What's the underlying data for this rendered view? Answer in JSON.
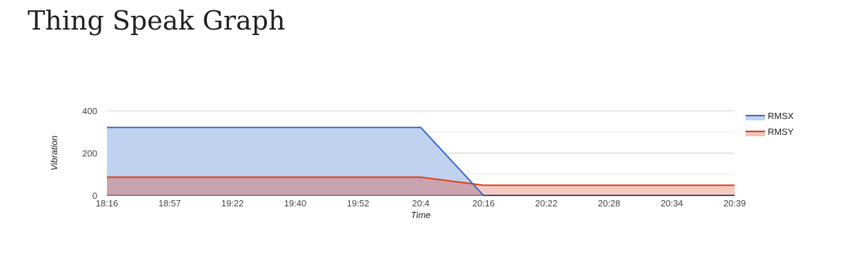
{
  "page": {
    "title": "Thing Speak Graph"
  },
  "chart_data": {
    "type": "area",
    "title": "",
    "xlabel": "Time",
    "ylabel": "Vibration",
    "categories": [
      "18:16",
      "18:57",
      "19:22",
      "19:40",
      "19:52",
      "20:4",
      "20:16",
      "20:22",
      "20:28",
      "20:34",
      "20:39"
    ],
    "yticks": [
      0,
      200,
      400
    ],
    "ylim": [
      0,
      400
    ],
    "grid": true,
    "legend": "right",
    "series": [
      {
        "name": "RMSX",
        "color": "#3366cc",
        "fill": "#c1d1f0",
        "values": [
          321,
          321,
          321,
          321,
          321,
          321,
          0,
          0,
          0,
          0,
          0
        ]
      },
      {
        "name": "RMSY",
        "color": "#dc3912",
        "fill": "#f4c1b5",
        "values": [
          86,
          86,
          86,
          86,
          86,
          86,
          48,
          48,
          48,
          48,
          48
        ]
      }
    ],
    "overlap_fill": "#c9a3ae"
  }
}
